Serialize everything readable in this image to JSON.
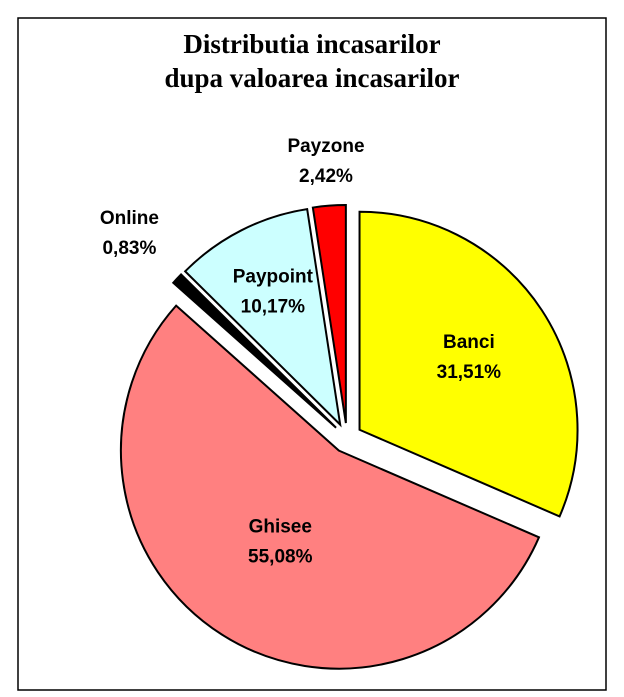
{
  "chart_data": {
    "type": "pie",
    "title": [
      "Distributia incasarilor",
      "dupa valoarea incasarilor"
    ],
    "categories": [
      "Banci",
      "Ghisee",
      "Online",
      "Paypoint",
      "Payzone"
    ],
    "values": [
      31.51,
      55.08,
      0.83,
      10.17,
      2.42
    ],
    "value_labels": [
      "31,51%",
      "55,08%",
      "0,83%",
      "10,17%",
      "2,42%"
    ],
    "colors": [
      "#ffff00",
      "#ff8080",
      "#000000",
      "#ccffff",
      "#ff0000"
    ]
  }
}
